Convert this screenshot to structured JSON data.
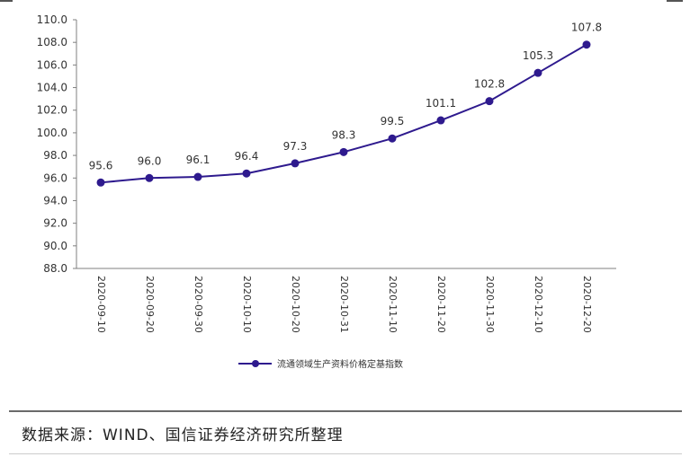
{
  "chart_data": {
    "type": "line",
    "categories": [
      "2020-09-10",
      "2020-09-20",
      "2020-09-30",
      "2020-10-10",
      "2020-10-20",
      "2020-10-31",
      "2020-11-10",
      "2020-11-20",
      "2020-11-30",
      "2020-12-10",
      "2020-12-20"
    ],
    "series": [
      {
        "name": "流通领域生产资料价格定基指数",
        "values": [
          95.6,
          96.0,
          96.1,
          96.4,
          97.3,
          98.3,
          99.5,
          101.1,
          102.8,
          105.3,
          107.8
        ],
        "color": "#2e1a8e"
      }
    ],
    "y_ticks": [
      "88.0",
      "90.0",
      "92.0",
      "94.0",
      "96.0",
      "98.0",
      "100.0",
      "102.0",
      "104.0",
      "106.0",
      "108.0",
      "110.0"
    ],
    "ylim": [
      88.0,
      110.0
    ],
    "grid": false,
    "legend": "bottom"
  },
  "source": {
    "text": "数据来源：WIND、国信证券经济研究所整理"
  }
}
